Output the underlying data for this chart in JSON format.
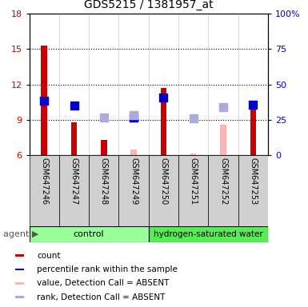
{
  "title": "GDS5215 / 1381957_at",
  "samples": [
    "GSM647246",
    "GSM647247",
    "GSM647248",
    "GSM647249",
    "GSM647250",
    "GSM647251",
    "GSM647252",
    "GSM647253"
  ],
  "ylim_left": [
    6,
    18
  ],
  "ylim_right": [
    0,
    100
  ],
  "yticks_left": [
    6,
    9,
    12,
    15,
    18
  ],
  "yticks_right": [
    0,
    25,
    50,
    75,
    100
  ],
  "ytick_labels_right": [
    "0",
    "25",
    "50",
    "75",
    "100%"
  ],
  "red_bars": [
    15.3,
    8.8,
    7.3,
    null,
    11.7,
    null,
    null,
    10.1
  ],
  "blue_squares": [
    10.6,
    10.2,
    null,
    9.2,
    10.9,
    null,
    null,
    10.3
  ],
  "pink_bars": [
    null,
    null,
    null,
    6.5,
    null,
    6.1,
    8.6,
    null
  ],
  "lightblue_squares": [
    null,
    null,
    9.2,
    9.4,
    null,
    9.1,
    10.1,
    null
  ],
  "red_bar_color": "#cc0000",
  "blue_sq_color": "#0000cc",
  "pink_bar_color": "#ffb3b3",
  "lightblue_sq_color": "#aaaadd",
  "ctrl_color": "#99ff99",
  "h2_color": "#55ee55",
  "ylabel_left_color": "#cc0000",
  "ylabel_right_color": "#0000cc",
  "sample_bg_color": "#d0d0d0",
  "plot_bg": "#ffffff",
  "legend_items": [
    {
      "color": "#cc0000",
      "label": "count"
    },
    {
      "color": "#0000cc",
      "label": "percentile rank within the sample"
    },
    {
      "color": "#ffb3b3",
      "label": "value, Detection Call = ABSENT"
    },
    {
      "color": "#aaaadd",
      "label": "rank, Detection Call = ABSENT"
    }
  ]
}
